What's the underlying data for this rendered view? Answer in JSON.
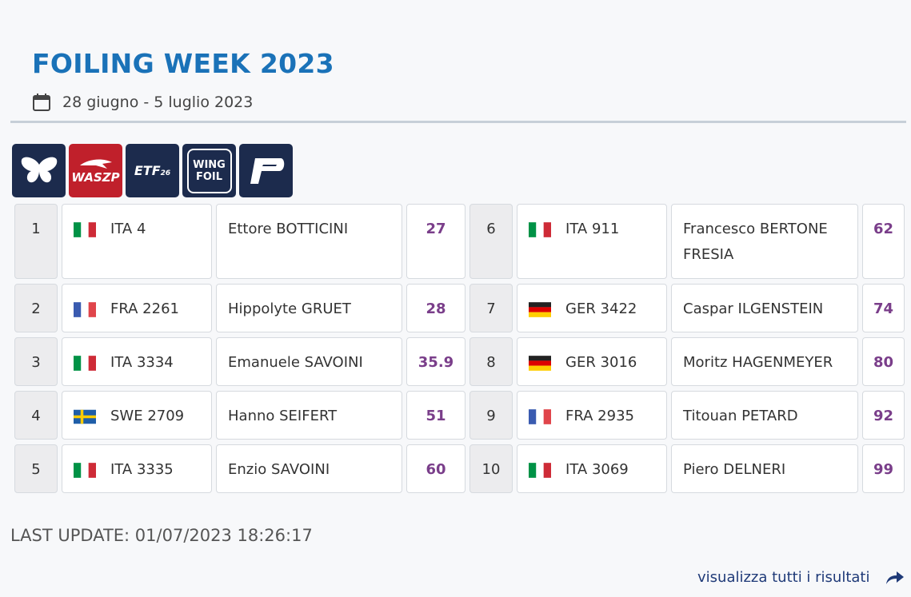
{
  "header": {
    "title": "FOILING WEEK 2023",
    "dates": "28 giugno - 5 luglio 2023"
  },
  "logos": [
    "WASZP",
    "ETF",
    "26",
    "WING",
    "FOIL"
  ],
  "table": {
    "rows": [
      [
        "1",
        "ITA 4",
        "Ettore BOTTICINI",
        27
      ],
      [
        "2",
        "FRA 2261",
        "Hippolyte GRUET",
        28
      ],
      [
        "3",
        "ITA 3334",
        "Emanuele SAVOINI",
        35.9
      ],
      [
        "4",
        "SWE 2709",
        "Hanno SEIFERT",
        51
      ],
      [
        "5",
        "ITA 3335",
        "Enzio SAVOINI",
        60
      ],
      [
        "6",
        "ITA 911",
        "Francesco BERTONE FRESIA",
        62
      ],
      [
        "7",
        "GER 3422",
        "Caspar ILGENSTEIN",
        74
      ],
      [
        "8",
        "GER 3016",
        "Moritz HAGENMEYER",
        80
      ],
      [
        "9",
        "FRA 2935",
        "Titouan PETARD",
        92
      ],
      [
        "10",
        "ITA 3069",
        "Piero DELNERI",
        99
      ]
    ]
  },
  "footer": {
    "last_update": "LAST UPDATE: 01/07/2023 18:26:17",
    "link": "visualizza tutti i risultati"
  }
}
